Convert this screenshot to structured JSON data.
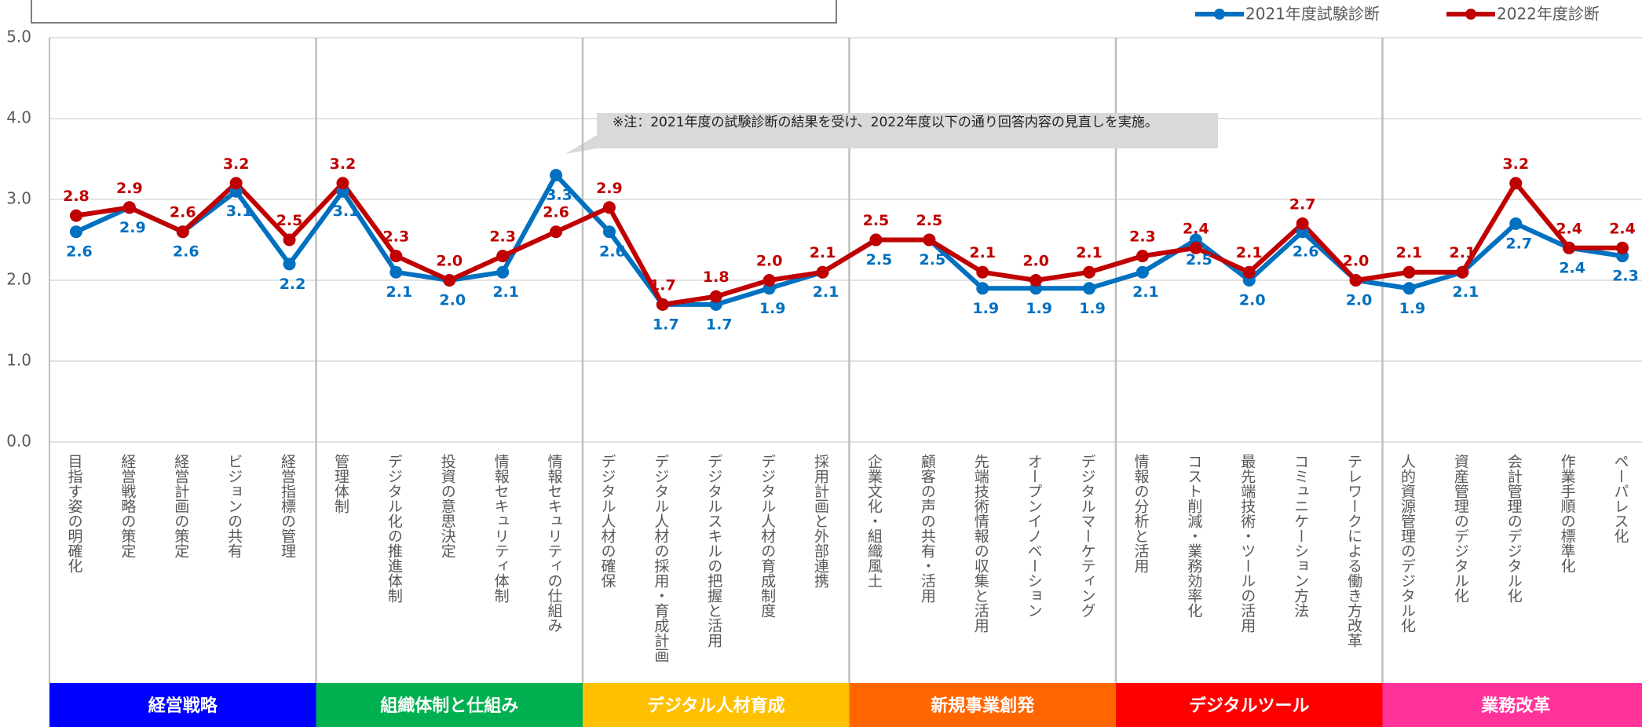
{
  "chart_data": {
    "type": "line",
    "categories": [
      "目指す姿の明確化",
      "経営戦略の策定",
      "経営計画の策定",
      "ビジョンの共有",
      "経営指標の管理",
      "管理体制",
      "デジタル化の推進体制",
      "投資の意思決定",
      "情報セキュリティ体制",
      "情報セキュリティの仕組み",
      "デジタル人材の確保",
      "デジタル人材の採用・育成計画",
      "デジタルスキルの把握と活用",
      "デジタル人材の育成制度",
      "採用計画と外部連携",
      "企業文化・組織風土",
      "顧客の声の共有・活用",
      "先端技術情報の収集と活用",
      "オープンイノベーション",
      "デジタルマーケティング",
      "情報の分析と活用",
      "コスト削減・業務効率化",
      "最先端技術・ツールの活用",
      "コミュニケーション方法",
      "テレワークによる働き方改革",
      "人的資源管理のデジタル化",
      "資産管理のデジタル化",
      "会計管理のデジタル化",
      "作業手順の標準化",
      "ペーパレス化"
    ],
    "series": [
      {
        "name": "2021年度試験診断",
        "color": "#0070c0",
        "values": [
          2.6,
          2.9,
          2.6,
          3.1,
          2.2,
          3.1,
          2.1,
          2.0,
          2.1,
          3.3,
          2.6,
          1.7,
          1.7,
          1.9,
          2.1,
          2.5,
          2.5,
          1.9,
          1.9,
          1.9,
          2.1,
          2.5,
          2.0,
          2.6,
          2.0,
          1.9,
          2.1,
          2.7,
          2.4,
          2.3
        ],
        "value_labels": [
          "2.6",
          "2.9",
          "2.6",
          "3.1",
          "2.2",
          "3.1",
          "2.1",
          "2.0",
          "2.1",
          "3.3",
          "2.6",
          "1.7",
          "1.7",
          "1.9",
          "2.1",
          "2.5",
          "2.5",
          "1.9",
          "1.9",
          "1.9",
          "2.1",
          "2.5",
          "2.0",
          "2.6",
          "2.0",
          "1.9",
          "2.1",
          "2.7",
          "2.4",
          "2.3"
        ]
      },
      {
        "name": "2022年度診断",
        "color": "#c00000",
        "values": [
          2.8,
          2.9,
          2.6,
          3.2,
          2.5,
          3.2,
          2.3,
          2.0,
          2.3,
          2.6,
          2.9,
          1.7,
          1.8,
          2.0,
          2.1,
          2.5,
          2.5,
          2.1,
          2.0,
          2.1,
          2.3,
          2.4,
          2.1,
          2.7,
          2.0,
          2.1,
          2.1,
          3.2,
          2.4,
          2.4
        ],
        "value_labels": [
          "2.8",
          "2.9",
          "2.6",
          "3.2",
          "2.5",
          "3.2",
          "2.3",
          "2.0",
          "2.3",
          "2.6",
          "2.9",
          "1.7",
          "1.8",
          "2.0",
          "2.1",
          "2.5",
          "2.5",
          "2.1",
          "2.0",
          "2.1",
          "2.3",
          "2.4",
          "2.1",
          "2.7",
          "2.0",
          "2.1",
          "2.1",
          "3.2",
          "2.4",
          "2.4"
        ]
      }
    ],
    "groups": [
      {
        "name": "経営戦略",
        "color": "#0000ff"
      },
      {
        "name": "組織体制と仕組み",
        "color": "#00b050"
      },
      {
        "name": "デジタル人材育成",
        "color": "#ffc000"
      },
      {
        "name": "新規事業創発",
        "color": "#ff6600"
      },
      {
        "name": "デジタルツール",
        "color": "#ff0000"
      },
      {
        "name": "業務改革",
        "color": "#ff3399"
      }
    ],
    "annotation": "※注：2021年度の試験診断の結果を受け、2022年度以下の通り回答内容の見直しを実施。",
    "ylim": [
      0,
      5
    ],
    "yticks": [
      {
        "value": 0,
        "label": "0.0"
      },
      {
        "value": 1,
        "label": "1.0"
      },
      {
        "value": 2,
        "label": "2.0"
      },
      {
        "value": 3,
        "label": "3.0"
      },
      {
        "value": 4,
        "label": "4.0"
      },
      {
        "value": 5,
        "label": "5.0"
      }
    ],
    "grid": true
  }
}
